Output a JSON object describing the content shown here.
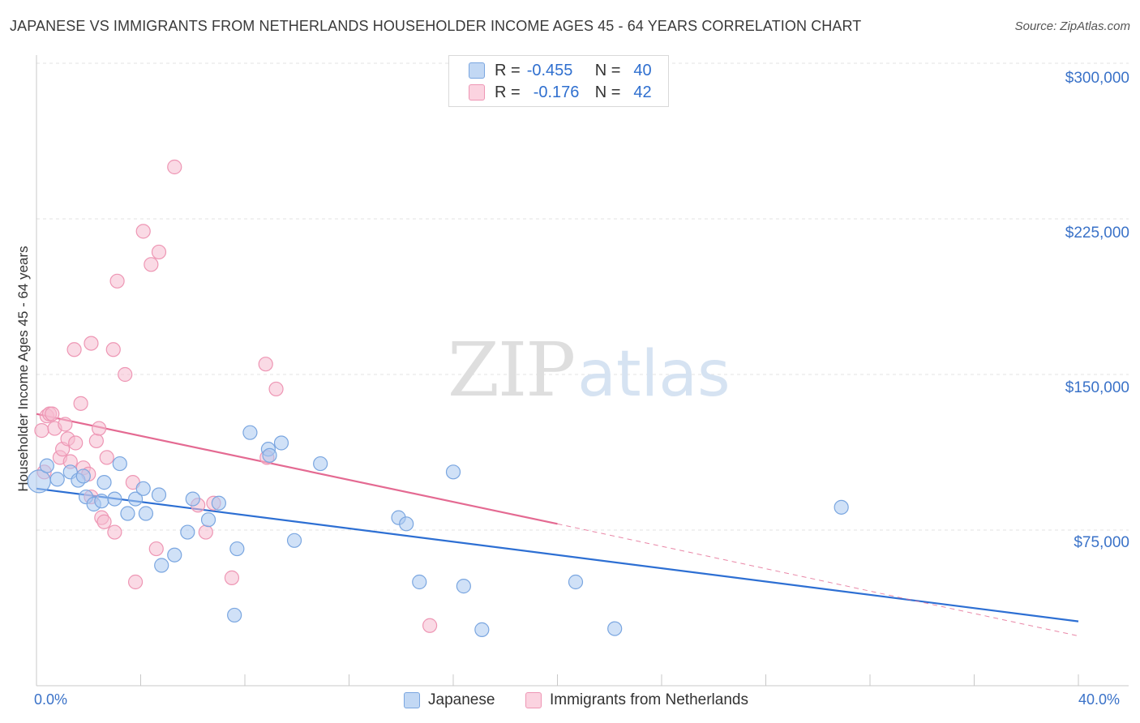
{
  "header": {
    "title": "JAPANESE VS IMMIGRANTS FROM NETHERLANDS HOUSEHOLDER INCOME AGES 45 - 64 YEARS CORRELATION CHART",
    "source_label": "Source:",
    "source_value": "ZipAtlas.com"
  },
  "legend": {
    "japanese": {
      "r_label": "R =",
      "r_value": "-0.455",
      "n_label": "N =",
      "n_value": "40"
    },
    "netherlands": {
      "r_label": "R =",
      "r_value": "-0.176",
      "n_label": "N =",
      "n_value": "42"
    }
  },
  "watermark": {
    "zip": "ZIP",
    "atlas": "atlas"
  },
  "colors": {
    "japanese_fill": "#aac8f0",
    "japanese_stroke": "#7aa6e0",
    "japanese_line": "#2d6fd3",
    "netherlands_fill": "#f6bcd0",
    "netherlands_stroke": "#ee96b4",
    "netherlands_line": "#e46a92"
  },
  "chart_data": {
    "type": "scatter",
    "title": "JAPANESE VS IMMIGRANTS FROM NETHERLANDS HOUSEHOLDER INCOME AGES 45 - 64 YEARS CORRELATION CHART",
    "xlabel": "",
    "ylabel": "Householder Income Ages 45 - 64 years",
    "xlim": [
      0,
      40
    ],
    "ylim": [
      0,
      310000
    ],
    "x_tick_labels": [
      "0.0%",
      "40.0%"
    ],
    "y_ticks": [
      75000,
      150000,
      225000,
      300000
    ],
    "y_tick_labels": [
      "$75,000",
      "$150,000",
      "$225,000",
      "$300,000"
    ],
    "grid": true,
    "series": [
      {
        "name": "Japanese",
        "points": [
          [
            0.1,
            98500
          ],
          [
            0.4,
            106000
          ],
          [
            0.8,
            99500
          ],
          [
            1.3,
            103000
          ],
          [
            1.6,
            99000
          ],
          [
            1.8,
            101000
          ],
          [
            1.9,
            91000
          ],
          [
            2.2,
            87500
          ],
          [
            2.5,
            89000
          ],
          [
            2.6,
            98000
          ],
          [
            3.0,
            90000
          ],
          [
            3.2,
            107000
          ],
          [
            3.5,
            83000
          ],
          [
            3.8,
            90000
          ],
          [
            4.1,
            95000
          ],
          [
            4.2,
            83000
          ],
          [
            4.7,
            92000
          ],
          [
            4.8,
            58000
          ],
          [
            5.3,
            63000
          ],
          [
            5.8,
            74000
          ],
          [
            6.0,
            90000
          ],
          [
            6.6,
            80000
          ],
          [
            7.0,
            88000
          ],
          [
            7.6,
            34000
          ],
          [
            7.7,
            66000
          ],
          [
            8.2,
            122000
          ],
          [
            8.9,
            114000
          ],
          [
            8.95,
            111000
          ],
          [
            9.4,
            117000
          ],
          [
            9.9,
            70000
          ],
          [
            10.9,
            107000
          ],
          [
            13.9,
            81000
          ],
          [
            14.2,
            78000
          ],
          [
            14.7,
            50000
          ],
          [
            16.0,
            103000
          ],
          [
            16.4,
            48000
          ],
          [
            17.1,
            27000
          ],
          [
            20.7,
            50000
          ],
          [
            22.2,
            27500
          ],
          [
            30.9,
            86000
          ]
        ],
        "trend": {
          "x": [
            0,
            40
          ],
          "y": [
            95000,
            31000
          ]
        }
      },
      {
        "name": "Immigrants from Netherlands",
        "points": [
          [
            0.2,
            123000
          ],
          [
            0.3,
            103000
          ],
          [
            0.4,
            130000
          ],
          [
            0.5,
            131000
          ],
          [
            0.6,
            131000
          ],
          [
            0.7,
            124000
          ],
          [
            0.9,
            110000
          ],
          [
            1.0,
            114000
          ],
          [
            1.1,
            126000
          ],
          [
            1.2,
            119000
          ],
          [
            1.3,
            108000
          ],
          [
            1.45,
            162000
          ],
          [
            1.5,
            117000
          ],
          [
            1.7,
            136000
          ],
          [
            1.8,
            105000
          ],
          [
            2.0,
            102000
          ],
          [
            2.1,
            91000
          ],
          [
            2.1,
            165000
          ],
          [
            2.3,
            118000
          ],
          [
            2.4,
            124000
          ],
          [
            2.5,
            81000
          ],
          [
            2.6,
            79000
          ],
          [
            2.7,
            110000
          ],
          [
            2.95,
            162000
          ],
          [
            3.0,
            74000
          ],
          [
            3.1,
            195000
          ],
          [
            3.4,
            150000
          ],
          [
            3.7,
            98000
          ],
          [
            3.8,
            50000
          ],
          [
            4.1,
            219000
          ],
          [
            4.4,
            203000
          ],
          [
            4.6,
            66000
          ],
          [
            4.7,
            209000
          ],
          [
            5.3,
            250000
          ],
          [
            6.2,
            87000
          ],
          [
            6.5,
            74000
          ],
          [
            6.8,
            88000
          ],
          [
            7.5,
            52000
          ],
          [
            8.8,
            155000
          ],
          [
            8.85,
            110000
          ],
          [
            9.2,
            143000
          ],
          [
            15.1,
            29000
          ]
        ],
        "trend": {
          "x": [
            0,
            20
          ],
          "y": [
            131000,
            78000
          ]
        },
        "trend_extrapolated": {
          "x": [
            20,
            40
          ],
          "y": [
            78000,
            24000
          ]
        }
      }
    ]
  },
  "bottom_legend": {
    "japanese": "Japanese",
    "netherlands": "Immigrants from Netherlands"
  }
}
